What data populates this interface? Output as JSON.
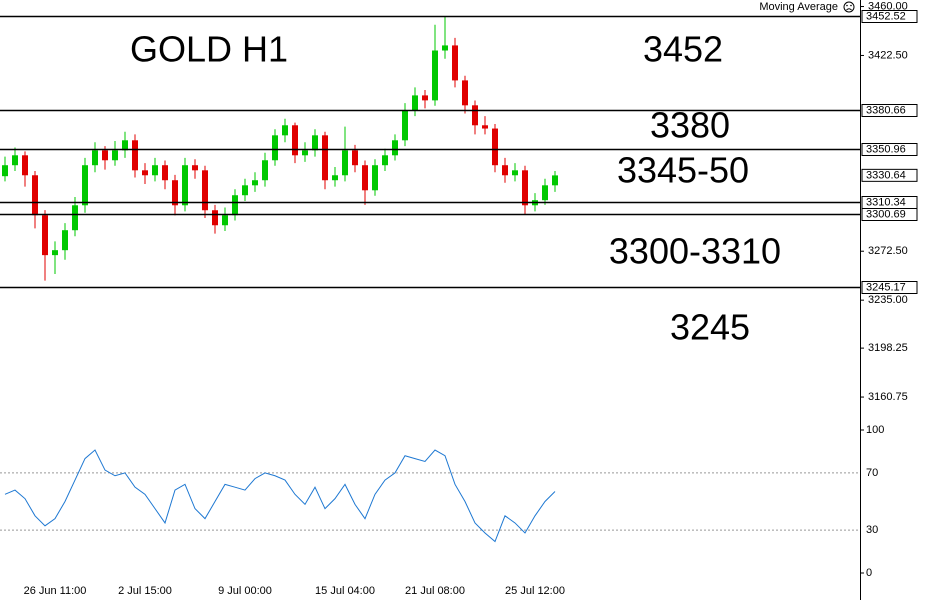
{
  "indicator": "Moving Average",
  "chart_data": [
    {
      "type": "candlestick",
      "title": "GOLD H1",
      "categories": [
        null,
        null,
        null,
        null,
        null,
        "26 Jun 11:00",
        null,
        null,
        null,
        null,
        null,
        null,
        null,
        null,
        "2 Jul 15:00",
        null,
        null,
        null,
        null,
        null,
        null,
        null,
        null,
        null,
        "9 Jul 00:00",
        null,
        null,
        null,
        null,
        null,
        null,
        null,
        null,
        null,
        "15 Jul 04:00",
        null,
        null,
        null,
        null,
        null,
        null,
        null,
        null,
        "21 Jul 08:00",
        null,
        null,
        null,
        null,
        null,
        null,
        null,
        null,
        null,
        "25 Jul 12:00",
        null,
        null
      ],
      "open": [
        3330.0,
        3338.4,
        3346.0,
        3330.7,
        3300.1,
        3269.5,
        3273.3,
        3288.6,
        3307.7,
        3338.4,
        3349.8,
        3342.2,
        3349.8,
        3357.5,
        3334.5,
        3330.7,
        3338.4,
        3326.9,
        3307.7,
        3338.4,
        3334.5,
        3303.9,
        3292.4,
        3300.1,
        3315.4,
        3323.0,
        3326.9,
        3342.2,
        3361.3,
        3369.0,
        3346.0,
        3349.8,
        3361.3,
        3326.9,
        3330.7,
        3349.8,
        3338.4,
        3319.2,
        3338.4,
        3346.0,
        3357.5,
        3380.4,
        3391.9,
        3388.1,
        3426.3,
        3430.2,
        3403.4,
        3384.3,
        3369.0,
        3366.5,
        3338.4,
        3330.7,
        3334.5,
        3307.7,
        3311.6,
        3323.0
      ],
      "high": [
        3345,
        3352,
        3349,
        3334,
        3304,
        3280,
        3294,
        3314,
        3344,
        3356,
        3353,
        3357,
        3364,
        3362,
        3340,
        3344,
        3342,
        3331,
        3344,
        3343,
        3338,
        3308,
        3306,
        3320,
        3328,
        3333,
        3348,
        3366,
        3374,
        3371,
        3356,
        3366,
        3364,
        3337,
        3368,
        3354,
        3342,
        3343,
        3351,
        3362,
        3386,
        3398,
        3396,
        3446,
        3452,
        3436,
        3407,
        3388,
        3376,
        3370,
        3344,
        3340,
        3338,
        3317,
        3328,
        3334
      ],
      "low": [
        3326,
        3334,
        3322,
        3290,
        3250,
        3255,
        3266,
        3284,
        3302,
        3333,
        3335,
        3338,
        3344,
        3329,
        3324,
        3326,
        3320,
        3300,
        3303,
        3328,
        3298,
        3286,
        3288,
        3296,
        3311,
        3318,
        3322,
        3338,
        3356,
        3340,
        3341,
        3345,
        3320,
        3322,
        3326,
        3333,
        3308,
        3315,
        3334,
        3342,
        3353,
        3376,
        3382,
        3384,
        3420,
        3398,
        3378,
        3362,
        3362,
        3333,
        3325,
        3326,
        3301,
        3303,
        3308,
        3318
      ],
      "close": [
        3338.4,
        3346.0,
        3330.7,
        3300.1,
        3269.5,
        3273.3,
        3288.6,
        3307.7,
        3338.4,
        3349.8,
        3342.2,
        3349.8,
        3357.5,
        3334.5,
        3330.7,
        3338.4,
        3326.9,
        3307.7,
        3338.4,
        3334.5,
        3303.9,
        3292.4,
        3300.1,
        3315.4,
        3323.0,
        3326.9,
        3342.2,
        3361.3,
        3369.0,
        3346.0,
        3349.8,
        3361.3,
        3326.9,
        3330.7,
        3349.8,
        3338.4,
        3319.2,
        3338.4,
        3346.0,
        3357.5,
        3380.4,
        3391.9,
        3388.1,
        3426.3,
        3430.2,
        3403.4,
        3384.3,
        3369.0,
        3366.5,
        3338.4,
        3330.7,
        3334.5,
        3307.7,
        3311.6,
        3323.0,
        3330.6
      ],
      "up_color": "#00c800",
      "down_color": "#e00000",
      "ylim": [
        3147,
        3465
      ],
      "yticks": [
        {
          "value": 3460,
          "label": "3460.00"
        },
        {
          "value": 3422.5,
          "label": "3422.50"
        },
        {
          "value": 3272.5,
          "label": "3272.50"
        },
        {
          "value": 3235,
          "label": "3235.00"
        },
        {
          "value": 3198.25,
          "label": "3198.25"
        },
        {
          "value": 3160.75,
          "label": "3160.75"
        }
      ],
      "levels": [
        3452.52,
        3380.66,
        3350.96,
        3310.34,
        3300.69,
        3245.17
      ],
      "current_price": 3330.64,
      "annotations": [
        {
          "text": "3452",
          "color": "#e60000"
        },
        {
          "text": "3380",
          "color": "#e60000"
        },
        {
          "text": "3345-50",
          "color": "#e60000"
        },
        {
          "text": "3300-3310",
          "color": "#22e022"
        },
        {
          "text": "3245",
          "color": "#22e022"
        }
      ]
    },
    {
      "type": "line",
      "color": "#1e78d2",
      "values": [
        55,
        58,
        52,
        40,
        33,
        38,
        50,
        65,
        80,
        86,
        72,
        68,
        70,
        60,
        55,
        45,
        35,
        58,
        62,
        45,
        38,
        50,
        62,
        60,
        58,
        66,
        70,
        68,
        65,
        55,
        48,
        60,
        45,
        52,
        62,
        48,
        38,
        55,
        65,
        70,
        82,
        80,
        78,
        86,
        82,
        62,
        50,
        35,
        28,
        22,
        40,
        35,
        28,
        40,
        50,
        57
      ],
      "ylim": [
        0,
        100
      ],
      "yticks": [
        0,
        30,
        70,
        100
      ]
    }
  ]
}
